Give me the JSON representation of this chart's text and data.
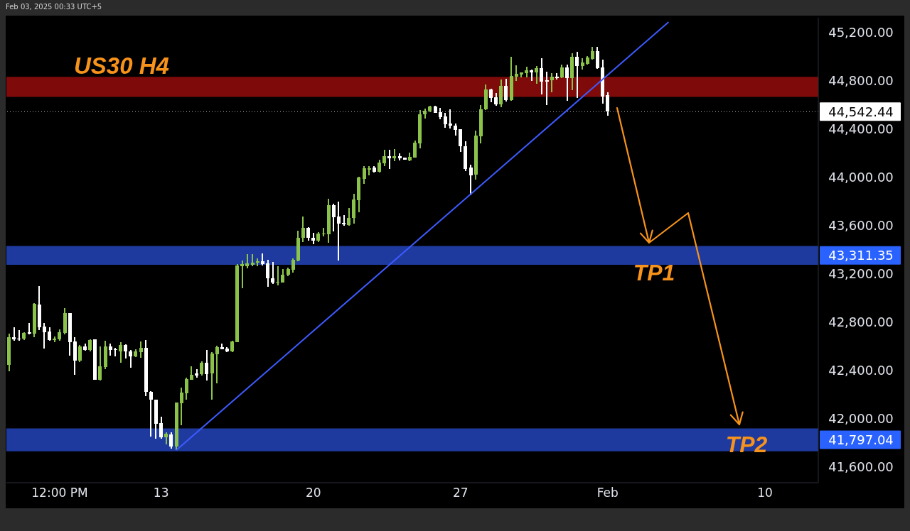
{
  "chart_data": {
    "type": "candlestick",
    "title": "US30 H4",
    "annotations": [
      "Feb 03, 2025 00:33 UTC+5",
      "TP1",
      "TP2"
    ],
    "categories": [
      null,
      null,
      null,
      null,
      null,
      null,
      null,
      null,
      null,
      null,
      "12:00 PM",
      null,
      null,
      null,
      null,
      null,
      null,
      null,
      null,
      null,
      null,
      null,
      null,
      null,
      null,
      null,
      null,
      null,
      null,
      null,
      "13",
      null,
      null,
      null,
      null,
      null,
      null,
      null,
      null,
      null,
      null,
      null,
      null,
      null,
      null,
      null,
      null,
      null,
      null,
      null,
      null,
      null,
      null,
      null,
      null,
      null,
      null,
      null,
      null,
      null,
      "20",
      null,
      null,
      null,
      null,
      null,
      null,
      null,
      null,
      null,
      null,
      null,
      null,
      null,
      null,
      null,
      null,
      null,
      null,
      null,
      null,
      null,
      null,
      null,
      null,
      null,
      null,
      null,
      null,
      "27",
      null,
      null,
      null,
      null,
      null,
      null,
      null,
      null,
      null,
      null,
      null,
      null,
      null,
      null,
      null,
      null,
      null,
      null,
      null,
      null,
      null,
      null,
      null,
      null,
      null,
      null,
      null,
      null,
      "Feb",
      null,
      null,
      null,
      null,
      null,
      null,
      null,
      null,
      null,
      null,
      null,
      null,
      null,
      null,
      null,
      null,
      null,
      null,
      null,
      null,
      null,
      null,
      null,
      null,
      null,
      null,
      null,
      null,
      null,
      null,
      "10",
      null,
      null,
      null,
      null,
      null,
      null,
      null,
      null,
      null,
      null
    ],
    "ohlc": [
      [
        42445,
        42705,
        42390,
        42675
      ],
      [
        42675,
        42755,
        42645,
        42660
      ],
      [
        42665,
        42735,
        42645,
        42660
      ],
      [
        42665,
        42715,
        42650,
        42710
      ],
      [
        42715,
        42790,
        42700,
        42705
      ],
      [
        42705,
        42960,
        42675,
        42950
      ],
      [
        42945,
        43100,
        42735,
        42760
      ],
      [
        42765,
        42790,
        42580,
        42715
      ],
      [
        42720,
        42755,
        42645,
        42650
      ],
      [
        42650,
        42680,
        42635,
        42665
      ],
      [
        42660,
        42740,
        42645,
        42715
      ],
      [
        42710,
        42915,
        42700,
        42875
      ],
      [
        42875,
        42875,
        42525,
        42635
      ],
      [
        42640,
        42675,
        42365,
        42480
      ],
      [
        42480,
        42610,
        42470,
        42600
      ],
      [
        42600,
        42625,
        42565,
        42570
      ],
      [
        42570,
        42660,
        42555,
        42650
      ],
      [
        42655,
        42660,
        42320,
        42320
      ],
      [
        42320,
        42600,
        42315,
        42435
      ],
      [
        42430,
        42645,
        42410,
        42600
      ],
      [
        42600,
        42620,
        42525,
        42570
      ],
      [
        42575,
        42585,
        42515,
        42570
      ],
      [
        42560,
        42635,
        42465,
        42610
      ],
      [
        42610,
        42615,
        42500,
        42560
      ],
      [
        42560,
        42570,
        42425,
        42515
      ],
      [
        42515,
        42575,
        42510,
        42555
      ],
      [
        42550,
        42640,
        42505,
        42585
      ],
      [
        42585,
        42650,
        42190,
        42220
      ],
      [
        42225,
        42230,
        41850,
        42155
      ],
      [
        42160,
        42160,
        41835,
        41960
      ],
      [
        41965,
        42015,
        41835,
        41845
      ],
      [
        41845,
        41890,
        41785,
        41875
      ],
      [
        41870,
        41890,
        41750,
        41770
      ],
      [
        41770,
        42135,
        41740,
        42135
      ],
      [
        42130,
        42255,
        41945,
        42215
      ],
      [
        42210,
        42340,
        42155,
        42330
      ],
      [
        42325,
        42435,
        42320,
        42365
      ],
      [
        42375,
        42410,
        42340,
        42360
      ],
      [
        42370,
        42475,
        42360,
        42465
      ],
      [
        42465,
        42570,
        42315,
        42370
      ],
      [
        42375,
        42550,
        42155,
        42540
      ],
      [
        42535,
        42605,
        42295,
        42595
      ],
      [
        42595,
        42620,
        42575,
        42575
      ],
      [
        42580,
        42590,
        42550,
        42555
      ],
      [
        42555,
        42645,
        42550,
        42640
      ],
      [
        42635,
        43280,
        42635,
        43270
      ],
      [
        43265,
        43310,
        43080,
        43280
      ],
      [
        43265,
        43360,
        43245,
        43285
      ],
      [
        43275,
        43365,
        43260,
        43295
      ],
      [
        43290,
        43325,
        43260,
        43305
      ],
      [
        43305,
        43370,
        43270,
        43280
      ],
      [
        43285,
        43315,
        43090,
        43165
      ],
      [
        43165,
        43300,
        43115,
        43125
      ],
      [
        43130,
        43265,
        43105,
        43135
      ],
      [
        43130,
        43240,
        43125,
        43190
      ],
      [
        43190,
        43250,
        43180,
        43240
      ],
      [
        43235,
        43330,
        43210,
        43315
      ],
      [
        43310,
        43555,
        43305,
        43495
      ],
      [
        43495,
        43675,
        43465,
        43580
      ],
      [
        43580,
        43585,
        43475,
        43495
      ],
      [
        43500,
        43540,
        43445,
        43475
      ],
      [
        43475,
        43545,
        43465,
        43535
      ],
      [
        43525,
        43580,
        43510,
        43535
      ],
      [
        43530,
        43820,
        43455,
        43770
      ],
      [
        43770,
        43780,
        43550,
        43670
      ],
      [
        43675,
        43795,
        43310,
        43615
      ],
      [
        43620,
        43685,
        43600,
        43610
      ],
      [
        43605,
        43745,
        43595,
        43665
      ],
      [
        43660,
        43865,
        43615,
        43815
      ],
      [
        43810,
        44005,
        43710,
        43995
      ],
      [
        43985,
        44090,
        43945,
        44075
      ],
      [
        44065,
        44090,
        44015,
        44075
      ],
      [
        44080,
        44090,
        44040,
        44045
      ],
      [
        44045,
        44145,
        44040,
        44120
      ],
      [
        44115,
        44225,
        44090,
        44175
      ],
      [
        44175,
        44225,
        44070,
        44155
      ],
      [
        44155,
        44235,
        44135,
        44175
      ],
      [
        44175,
        44195,
        44140,
        44155
      ],
      [
        44160,
        44165,
        44145,
        44145
      ],
      [
        44140,
        44205,
        44135,
        44170
      ],
      [
        44165,
        44305,
        44165,
        44285
      ],
      [
        44280,
        44555,
        44240,
        44520
      ],
      [
        44520,
        44570,
        44485,
        44550
      ],
      [
        44550,
        44590,
        44540,
        44585
      ],
      [
        44585,
        44590,
        44530,
        44535
      ],
      [
        44540,
        44575,
        44480,
        44500
      ],
      [
        44505,
        44535,
        44410,
        44440
      ],
      [
        44445,
        44560,
        44405,
        44425
      ],
      [
        44425,
        44445,
        44345,
        44390
      ],
      [
        44395,
        44400,
        44210,
        44255
      ],
      [
        44255,
        44300,
        44050,
        44070
      ],
      [
        44080,
        44105,
        43850,
        44015
      ],
      [
        44020,
        44385,
        43980,
        44345
      ],
      [
        44340,
        44595,
        44280,
        44560
      ],
      [
        44560,
        44765,
        44555,
        44725
      ],
      [
        44725,
        44735,
        44620,
        44655
      ],
      [
        44660,
        44695,
        44590,
        44600
      ],
      [
        44600,
        44810,
        44580,
        44755
      ],
      [
        44755,
        44815,
        44625,
        44640
      ],
      [
        44640,
        44995,
        44635,
        44840
      ],
      [
        44835,
        44925,
        44795,
        44855
      ],
      [
        44850,
        44865,
        44825,
        44865
      ],
      [
        44860,
        44915,
        44825,
        44885
      ],
      [
        44885,
        44890,
        44795,
        44870
      ],
      [
        44865,
        44920,
        44775,
        44900
      ],
      [
        44900,
        44985,
        44685,
        44790
      ],
      [
        44805,
        44875,
        44595,
        44790
      ],
      [
        44800,
        44860,
        44705,
        44830
      ],
      [
        44835,
        44860,
        44810,
        44820
      ],
      [
        44825,
        44935,
        44820,
        44910
      ],
      [
        44910,
        44935,
        44635,
        44820
      ],
      [
        44820,
        45025,
        44720,
        44995
      ],
      [
        44995,
        45035,
        44655,
        44920
      ],
      [
        44920,
        44985,
        44890,
        44950
      ],
      [
        44940,
        45000,
        44935,
        44990
      ],
      [
        44980,
        45080,
        44975,
        45045
      ],
      [
        45045,
        45080,
        44895,
        44900
      ],
      [
        44910,
        44975,
        44610,
        44665
      ],
      [
        44680,
        44705,
        44510,
        44542.44
      ],
      null,
      null,
      null,
      null,
      null,
      null,
      null,
      null,
      null,
      null,
      null,
      null,
      null,
      null,
      null,
      null,
      null,
      null,
      null,
      null,
      null,
      null,
      null,
      null,
      null,
      null,
      null,
      null,
      null,
      null,
      null,
      null,
      null,
      null,
      null,
      null,
      null,
      null,
      null,
      null,
      null
    ],
    "colors": [
      "#8bc34a",
      "#ffffff",
      "#ffffff",
      "#8bc34a",
      "#ffffff",
      "#8bc34a",
      "#ffffff",
      "#ffffff",
      "#ffffff",
      "#8bc34a",
      "#8bc34a",
      "#8bc34a",
      "#ffffff",
      "#ffffff",
      "#8bc34a",
      "#ffffff",
      "#8bc34a",
      "#ffffff",
      "#8bc34a",
      "#8bc34a",
      "#ffffff",
      "#ffffff",
      "#8bc34a",
      "#ffffff",
      "#ffffff",
      "#8bc34a",
      "#8bc34a",
      "#ffffff",
      "#ffffff",
      "#ffffff",
      "#ffffff",
      "#8bc34a",
      "#ffffff",
      "#8bc34a",
      "#8bc34a",
      "#8bc34a",
      "#8bc34a",
      "#ffffff",
      "#8bc34a",
      "#ffffff",
      "#8bc34a",
      "#8bc34a",
      "#ffffff",
      "#ffffff",
      "#8bc34a",
      "#8bc34a",
      "#8bc34a",
      "#8bc34a",
      "#8bc34a",
      "#8bc34a",
      "#ffffff",
      "#ffffff",
      "#ffffff",
      "#8bc34a",
      "#8bc34a",
      "#8bc34a",
      "#8bc34a",
      "#8bc34a",
      "#8bc34a",
      "#ffffff",
      "#ffffff",
      "#8bc34a",
      "#8bc34a",
      "#8bc34a",
      "#ffffff",
      "#ffffff",
      "#ffffff",
      "#8bc34a",
      "#8bc34a",
      "#8bc34a",
      "#8bc34a",
      "#8bc34a",
      "#ffffff",
      "#8bc34a",
      "#8bc34a",
      "#ffffff",
      "#8bc34a",
      "#ffffff",
      "#ffffff",
      "#8bc34a",
      "#8bc34a",
      "#8bc34a",
      "#8bc34a",
      "#8bc34a",
      "#ffffff",
      "#ffffff",
      "#ffffff",
      "#ffffff",
      "#ffffff",
      "#ffffff",
      "#ffffff",
      "#ffffff",
      "#8bc34a",
      "#8bc34a",
      "#8bc34a",
      "#ffffff",
      "#ffffff",
      "#8bc34a",
      "#ffffff",
      "#8bc34a",
      "#8bc34a",
      "#8bc34a",
      "#8bc34a",
      "#ffffff",
      "#8bc34a",
      "#ffffff",
      "#ffffff",
      "#8bc34a",
      "#ffffff",
      "#8bc34a",
      "#ffffff",
      "#8bc34a",
      "#ffffff",
      "#8bc34a",
      "#8bc34a",
      "#8bc34a",
      "#ffffff",
      "#ffffff",
      "#ffffff",
      null,
      null,
      null,
      null,
      null,
      null,
      null,
      null,
      null,
      null,
      null,
      null,
      null,
      null,
      null,
      null,
      null,
      null,
      null,
      null,
      null,
      null,
      null,
      null,
      null,
      null,
      null,
      null,
      null,
      null,
      null,
      null,
      null,
      null,
      null,
      null,
      null,
      null,
      null,
      null,
      null
    ],
    "series": [
      {
        "type": "line",
        "color": "#3d5afe",
        "values": [
          null,
          null,
          null,
          null,
          null,
          null,
          null,
          null,
          null,
          null,
          null,
          null,
          null,
          null,
          null,
          null,
          null,
          null,
          null,
          null,
          null,
          null,
          null,
          null,
          null,
          null,
          null,
          null,
          null,
          null,
          null,
          null,
          null,
          41740,
          null,
          null,
          null,
          null,
          null,
          null,
          null,
          null,
          null,
          null,
          null,
          null,
          null,
          null,
          null,
          null,
          null,
          null,
          null,
          null,
          null,
          null,
          null,
          null,
          null,
          null,
          null,
          null,
          null,
          null,
          null,
          null,
          null,
          null,
          null,
          null,
          null,
          null,
          null,
          null,
          null,
          null,
          null,
          null,
          null,
          null,
          null,
          null,
          null,
          null,
          null,
          null,
          null,
          null,
          null,
          null,
          null,
          null,
          null,
          null,
          null,
          null,
          null,
          null,
          null,
          null,
          null,
          null,
          null,
          null,
          null,
          null,
          null,
          null,
          null,
          null,
          null,
          null,
          null,
          null,
          null,
          null,
          null,
          null,
          null,
          null,
          null,
          null,
          null,
          null,
          null,
          null,
          null,
          null,
          null,
          null,
          45285,
          null,
          null,
          null,
          null,
          null,
          null,
          null,
          null,
          null,
          null,
          null,
          null,
          null,
          null,
          null,
          null,
          null,
          null,
          null,
          null,
          null,
          null,
          null,
          null,
          null,
          null,
          null,
          null,
          null
        ]
      }
    ],
    "ylim": [
      41470,
      45320
    ],
    "yticks": [
      {
        "value": 41600,
        "label": "41,600.00"
      },
      {
        "value": 42000,
        "label": "42,000.00"
      },
      {
        "value": 42400,
        "label": "42,400.00"
      },
      {
        "value": 42800,
        "label": "42,800.00"
      },
      {
        "value": 43200,
        "label": "43,200.00"
      },
      {
        "value": 43600,
        "label": "43,600.00"
      },
      {
        "value": 44000,
        "label": "44,000.00"
      },
      {
        "value": 44400,
        "label": "44,400.00"
      },
      {
        "value": 44800,
        "label": "44,800.00"
      },
      {
        "value": 45200,
        "label": "45,200.00"
      }
    ],
    "ref_lines": [
      {
        "axis": "y",
        "value": 44542.44,
        "label": "44,542.44",
        "color": "#b2b5be",
        "line_style": "dotted"
      }
    ],
    "bands": [
      {
        "axis": "y",
        "from": 43275,
        "to": 43430,
        "label": "43,311.35",
        "color": "#1e3a9e"
      },
      {
        "axis": "y",
        "from": 41730,
        "to": 41920,
        "label": "41,797.04",
        "color": "#1e3a9e"
      },
      {
        "axis": "y",
        "from": 44665,
        "to": 44830,
        "color": "#7f0a0a"
      }
    ]
  }
}
